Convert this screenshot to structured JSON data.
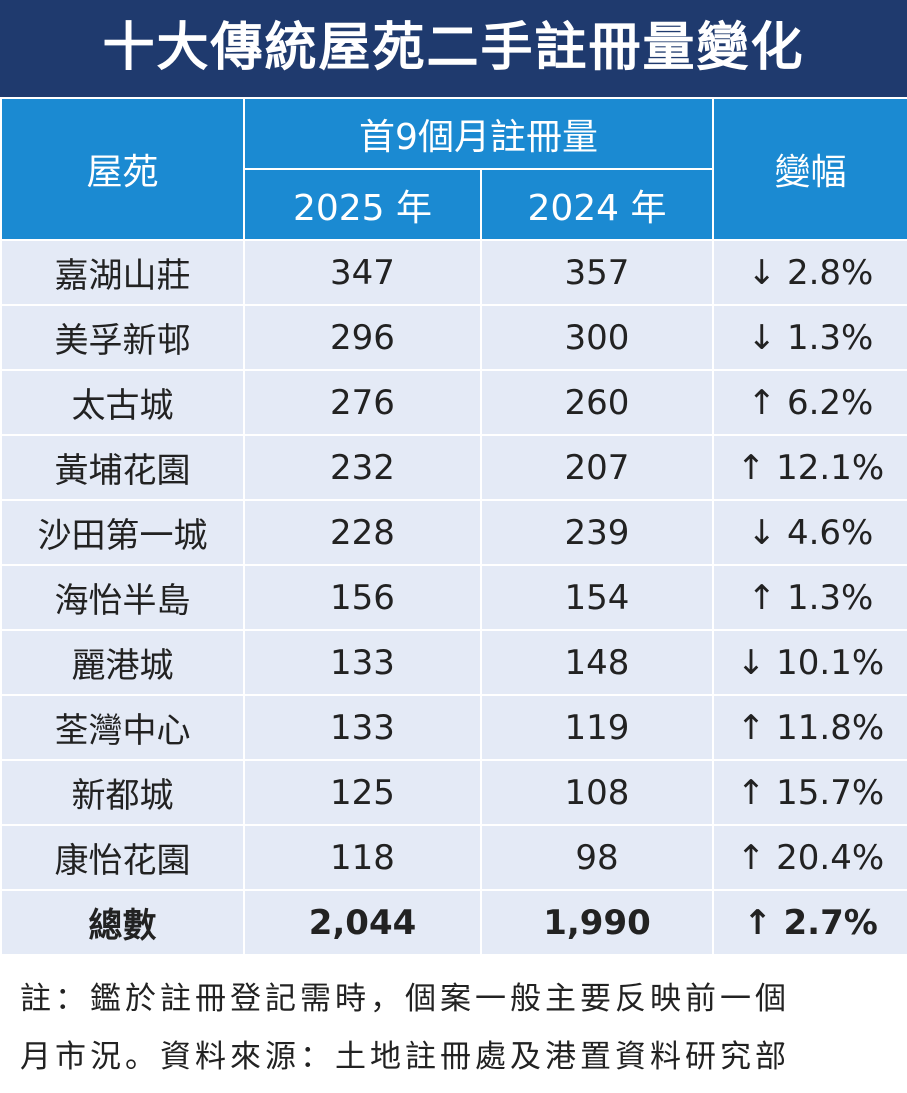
{
  "title": "十大傳統屋苑二手註冊量變化",
  "table": {
    "header": {
      "estate": "屋苑",
      "group": "首9個月註冊量",
      "year1": "2025 年",
      "year2": "2024 年",
      "change": "變幅"
    },
    "rows": [
      [
        "嘉湖山莊",
        "347",
        "357",
        "↓ 2.8%"
      ],
      [
        "美孚新邨",
        "296",
        "300",
        "↓ 1.3%"
      ],
      [
        "太古城",
        "276",
        "260",
        "↑ 6.2%"
      ],
      [
        "黃埔花園",
        "232",
        "207",
        "↑ 12.1%"
      ],
      [
        "沙田第一城",
        "228",
        "239",
        "↓ 4.6%"
      ],
      [
        "海怡半島",
        "156",
        "154",
        "↑ 1.3%"
      ],
      [
        "麗港城",
        "133",
        "148",
        "↓ 10.1%"
      ],
      [
        "荃灣中心",
        "133",
        "119",
        "↑ 11.8%"
      ],
      [
        "新都城",
        "125",
        "108",
        "↑ 15.7%"
      ],
      [
        "康怡花園",
        "118",
        "98",
        "↑ 20.4%"
      ]
    ],
    "total": [
      "總數",
      "2,044",
      "1,990",
      "↑ 2.7%"
    ]
  },
  "note": [
    "註：鑑於註冊登記需時，個案一般主要反映前一個",
    "月市況。資料來源：土地註冊處及港置資料研究部"
  ]
}
